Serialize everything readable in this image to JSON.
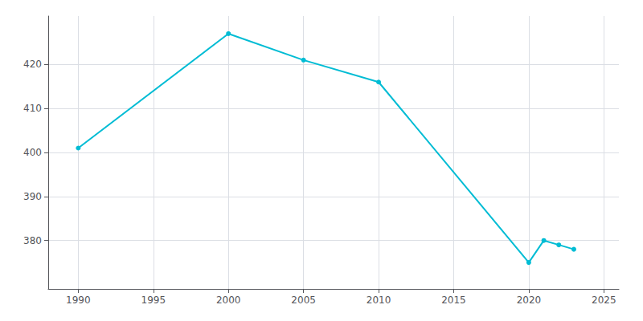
{
  "chart_data": {
    "type": "line",
    "x": [
      1990,
      2000,
      2005,
      2010,
      2020,
      2021,
      2022,
      2023
    ],
    "values": [
      401,
      427,
      421,
      416,
      375,
      380,
      379,
      378
    ],
    "color": "#00bcd4",
    "marker": "circle",
    "xlim": [
      1988,
      2026
    ],
    "xticks": [
      1990,
      1995,
      2000,
      2005,
      2010,
      2015,
      2020,
      2025
    ],
    "ylim": [
      369,
      431
    ],
    "yticks": [
      380,
      390,
      400,
      410,
      420
    ],
    "grid": true
  }
}
